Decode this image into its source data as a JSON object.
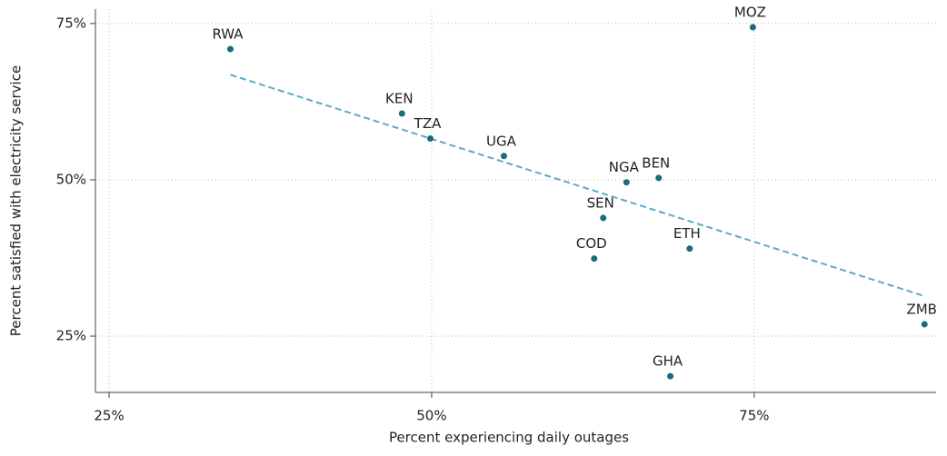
{
  "chart_data": {
    "type": "scatter",
    "xlabel": "Percent experiencing daily outages",
    "ylabel": "Percent satisfied with electricity service",
    "labels": [
      "RWA",
      "MOZ",
      "KEN",
      "TZA",
      "UGA",
      "NGA",
      "BEN",
      "SEN",
      "COD",
      "ETH",
      "ZMB",
      "GHA"
    ],
    "x": [
      34.4,
      74.9,
      47.7,
      49.9,
      55.6,
      65.1,
      67.6,
      63.3,
      62.6,
      70.0,
      88.2,
      68.5
    ],
    "values": [
      70.9,
      74.4,
      60.6,
      56.6,
      53.8,
      49.6,
      50.3,
      43.9,
      37.4,
      39.0,
      26.9,
      18.6
    ],
    "color": "#1a6b7c",
    "trendline": {
      "x": [
        34.4,
        88.2
      ],
      "values": [
        66.8,
        31.4
      ],
      "color": "#5fa8c8"
    },
    "xlim": [
      23.94,
      89.1
    ],
    "ylim": [
      16.0,
      77.3
    ],
    "xticks": [
      {
        "value": 25,
        "label": "25%"
      },
      {
        "value": 50,
        "label": "50%"
      },
      {
        "value": 75,
        "label": "75%"
      }
    ],
    "yticks": [
      {
        "value": 25,
        "label": "25%"
      },
      {
        "value": 50,
        "label": "50%"
      },
      {
        "value": 75,
        "label": "75%"
      }
    ],
    "grid": true
  }
}
